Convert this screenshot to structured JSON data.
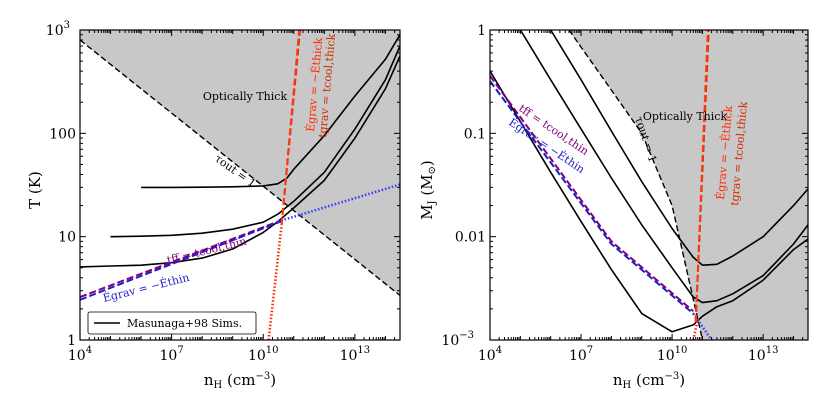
{
  "chart_data": [
    {
      "type": "line",
      "panel": "left",
      "xlabel": "n_H (cm^-3)",
      "ylabel": "T (K)",
      "xscale": "log",
      "yscale": "log",
      "xlim": [
        10000,
        300000000000000
      ],
      "ylim": [
        1,
        1000
      ],
      "xticks": [
        {
          "value": 10000,
          "mant": "10",
          "exp": "4"
        },
        {
          "value": 10000000,
          "mant": "10",
          "exp": "7"
        },
        {
          "value": 10000000000,
          "mant": "10",
          "exp": "10"
        },
        {
          "value": 10000000000000,
          "mant": "10",
          "exp": "13"
        }
      ],
      "yticks": [
        {
          "value": 1,
          "mant": "1",
          "exp": ""
        },
        {
          "value": 10,
          "mant": "10",
          "exp": ""
        },
        {
          "value": 100,
          "mant": "100",
          "exp": ""
        },
        {
          "value": 1000,
          "mant": "10",
          "exp": "3"
        }
      ],
      "region_label": "Optically Thick",
      "legend": {
        "label": "Masunaga+98 Sims.",
        "location": "lower-left"
      },
      "series": [
        {
          "name": "tau_out = 1",
          "label": "τout = 1",
          "style": "black-dashed",
          "x": [
            10000,
            300000000000000
          ],
          "y": [
            800,
            2.7
          ]
        },
        {
          "name": "Masunaga+98 T=5",
          "style": "black-solid",
          "x": [
            10000,
            100000,
            1000000,
            10000000,
            100000000,
            1000000000,
            10000000000,
            30000000000,
            100000000000,
            1000000000000,
            10000000000000,
            100000000000000,
            300000000000000
          ],
          "y": [
            5.1,
            5.2,
            5.3,
            5.6,
            6.2,
            7.6,
            11,
            14,
            19,
            35,
            90,
            270,
            560
          ]
        },
        {
          "name": "Masunaga+98 T=10",
          "style": "black-solid",
          "x": [
            100000,
            1000000,
            10000000,
            100000000,
            1000000000,
            10000000000,
            30000000000,
            100000000000,
            1000000000000,
            10000000000000,
            100000000000000,
            300000000000000
          ],
          "y": [
            10,
            10.1,
            10.3,
            10.8,
            11.8,
            13.8,
            16.5,
            22,
            42,
            110,
            330,
            700
          ]
        },
        {
          "name": "Masunaga+98 T=30",
          "style": "black-solid",
          "x": [
            1000000,
            10000000,
            100000000,
            1000000000,
            10000000000,
            30000000000,
            60000000000,
            100000000000,
            1000000000000,
            10000000000000,
            100000000000000,
            300000000000000
          ],
          "y": [
            30,
            30,
            30.1,
            30.4,
            31,
            32.5,
            37,
            45,
            95,
            230,
            520,
            900
          ]
        },
        {
          "name": "t_ff = t_cool,thin",
          "label": "tff = tcool,thin",
          "style": "purple-dashed",
          "x": [
            10000,
            50000000000
          ],
          "y": [
            2.6,
            14.8
          ]
        },
        {
          "name": "E_grav = -E_thin",
          "label": "Ėgrav = −Ėthin",
          "style": "blue-dashed",
          "x": [
            10000,
            50000000000
          ],
          "y": [
            2.45,
            14.5
          ]
        },
        {
          "name": "blue dotted",
          "style": "blue-dotted",
          "x": [
            30000000000,
            300000000000000
          ],
          "y": [
            14,
            32
          ]
        },
        {
          "name": "t_grav = t_cool,thick",
          "label": "tgrav = tcool,thick",
          "style": "red-dashed",
          "x": [
            40000000000,
            160000000000
          ],
          "y": [
            13,
            1000
          ]
        },
        {
          "name": "E_grav = -E_thick",
          "label": "Ėgrav = −Ėthick",
          "style": "orange-dashed",
          "x": [
            40000000000,
            150000000000
          ],
          "y": [
            13,
            1000
          ]
        },
        {
          "name": "red dotted",
          "style": "red-dotted",
          "x": [
            15000000000,
            40000000000
          ],
          "y": [
            1,
            13
          ]
        }
      ]
    },
    {
      "type": "line",
      "panel": "right",
      "xlabel": "n_H (cm^-3)",
      "ylabel": "M_J (M_sun)",
      "xscale": "log",
      "yscale": "log",
      "xlim": [
        10000,
        300000000000000
      ],
      "ylim": [
        0.001,
        1
      ],
      "xticks": [
        {
          "value": 10000,
          "mant": "10",
          "exp": "4"
        },
        {
          "value": 10000000,
          "mant": "10",
          "exp": "7"
        },
        {
          "value": 10000000000,
          "mant": "10",
          "exp": "10"
        },
        {
          "value": 10000000000000,
          "mant": "10",
          "exp": "13"
        }
      ],
      "yticks": [
        {
          "value": 0.001,
          "mant": "10",
          "exp": "−3"
        },
        {
          "value": 0.01,
          "mant": "0.01",
          "exp": ""
        },
        {
          "value": 0.1,
          "mant": "0.1",
          "exp": ""
        },
        {
          "value": 1,
          "mant": "1",
          "exp": ""
        }
      ],
      "region_label": "Optically Thick",
      "series": [
        {
          "name": "tau_out = 1",
          "label": "τout = 1",
          "style": "black-dashed",
          "x": [
            4000000,
            1000000000,
            10000000000,
            100000000000
          ],
          "y": [
            1,
            0.1,
            0.02,
            0.001
          ]
        },
        {
          "name": "Masunaga+98 T=5",
          "style": "black-solid",
          "x": [
            10000,
            100000,
            1000000,
            10000000,
            100000000,
            1000000000,
            10000000000,
            50000000000,
            100000000000,
            300000000000,
            1000000000000,
            10000000000000,
            100000000000000,
            300000000000000
          ],
          "y": [
            0.4,
            0.13,
            0.042,
            0.014,
            0.0048,
            0.0018,
            0.0012,
            0.0014,
            0.0017,
            0.0021,
            0.0024,
            0.0038,
            0.0075,
            0.0095
          ]
        },
        {
          "name": "Masunaga+98 T=10",
          "style": "black-solid",
          "x": [
            100000,
            1000000,
            10000000,
            100000000,
            1000000000,
            10000000000,
            50000000000,
            100000000000,
            300000000000,
            1000000000000,
            10000000000000,
            100000000000000,
            300000000000000
          ],
          "y": [
            1,
            0.33,
            0.11,
            0.037,
            0.013,
            0.005,
            0.0026,
            0.0023,
            0.0024,
            0.0028,
            0.0042,
            0.0085,
            0.013
          ]
        },
        {
          "name": "Masunaga+98 T=30",
          "style": "black-solid",
          "x": [
            1000000,
            10000000,
            100000000,
            1000000000,
            10000000000,
            50000000000,
            100000000000,
            300000000000,
            1000000000000,
            10000000000000,
            100000000000000,
            300000000000000
          ],
          "y": [
            1,
            0.33,
            0.105,
            0.034,
            0.012,
            0.0063,
            0.0053,
            0.0054,
            0.0065,
            0.01,
            0.02,
            0.029
          ]
        },
        {
          "name": "t_ff = t_cool,thin",
          "label": "tff = tcool,thin",
          "style": "purple-dashed",
          "x": [
            10000,
            100000000,
            50000000000
          ],
          "y": [
            0.36,
            0.009,
            0.0019
          ]
        },
        {
          "name": "E_grav = -E_thin",
          "label": "Ėgrav = −Ėthin",
          "style": "blue-dashed",
          "x": [
            10000,
            100000000,
            50000000000
          ],
          "y": [
            0.32,
            0.0085,
            0.0018
          ]
        },
        {
          "name": "blue dotted",
          "style": "blue-dotted",
          "x": [
            50000000000,
            200000000000
          ],
          "y": [
            0.0018,
            0.001
          ]
        },
        {
          "name": "t_grav = t_cool,thick",
          "label": "tgrav = tcool,thick",
          "style": "red-dashed",
          "x": [
            60000000000,
            160000000000
          ],
          "y": [
            0.0015,
            1
          ]
        },
        {
          "name": "E_grav = -E_thick",
          "label": "Ėgrav = −Ėthick",
          "style": "orange-dashed",
          "x": [
            60000000000,
            150000000000
          ],
          "y": [
            0.0015,
            1
          ]
        },
        {
          "name": "red dotted",
          "style": "red-dotted",
          "x": [
            50000000000,
            70000000000
          ],
          "y": [
            0.001,
            0.0016
          ]
        }
      ]
    }
  ]
}
